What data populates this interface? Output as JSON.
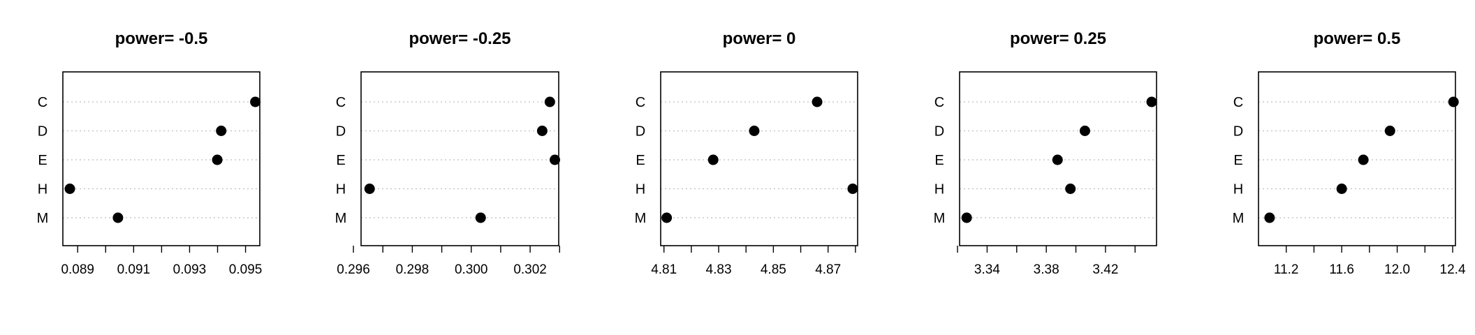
{
  "chart_data": [
    {
      "type": "scatter",
      "title": "power= -0.5",
      "categories": [
        "C",
        "D",
        "E",
        "H",
        "M"
      ],
      "values": [
        0.09535,
        0.09413,
        0.09399,
        0.08872,
        0.09044
      ],
      "xlim": [
        0.08847,
        0.09551
      ],
      "xticks": [
        0.089,
        0.09,
        0.091,
        0.092,
        0.093,
        0.094,
        0.095
      ],
      "xtick_labels": [
        "0.089",
        "",
        "0.091",
        "",
        "0.093",
        "",
        "0.095"
      ],
      "grid": "dotted horizontal",
      "colors": {
        "point": "#000000",
        "grid": "#bebebe"
      }
    },
    {
      "type": "scatter",
      "title": "power= -0.25",
      "categories": [
        "C",
        "D",
        "E",
        "H",
        "M"
      ],
      "values": [
        0.30267,
        0.30241,
        0.30284,
        0.29655,
        0.30032
      ],
      "xlim": [
        0.29626,
        0.30297
      ],
      "xticks": [
        0.296,
        0.297,
        0.298,
        0.299,
        0.3,
        0.301,
        0.302,
        0.303
      ],
      "xtick_labels": [
        "0.296",
        "",
        "0.298",
        "",
        "0.300",
        "",
        "0.302",
        ""
      ],
      "grid": "dotted horizontal",
      "colors": {
        "point": "#000000",
        "grid": "#bebebe"
      }
    },
    {
      "type": "scatter",
      "title": "power= 0",
      "categories": [
        "C",
        "D",
        "E",
        "H",
        "M"
      ],
      "values": [
        4.866,
        4.843,
        4.828,
        4.879,
        4.811
      ],
      "xlim": [
        4.8088,
        4.8808
      ],
      "xticks": [
        4.81,
        4.82,
        4.83,
        4.84,
        4.85,
        4.86,
        4.87,
        4.88
      ],
      "xtick_labels": [
        "4.81",
        "",
        "4.83",
        "",
        "4.85",
        "",
        "4.87",
        ""
      ],
      "grid": "dotted horizontal",
      "colors": {
        "point": "#000000",
        "grid": "#bebebe"
      }
    },
    {
      "type": "scatter",
      "title": "power= 0.25",
      "categories": [
        "C",
        "D",
        "E",
        "H",
        "M"
      ],
      "values": [
        3.4512,
        3.4061,
        3.3876,
        3.3963,
        3.3262
      ],
      "xlim": [
        3.3214,
        3.4545
      ],
      "xticks": [
        3.32,
        3.34,
        3.36,
        3.38,
        3.4,
        3.42,
        3.44
      ],
      "xtick_labels": [
        "",
        "3.34",
        "",
        "3.38",
        "",
        "3.42",
        ""
      ],
      "grid": "dotted horizontal",
      "colors": {
        "point": "#000000",
        "grid": "#bebebe"
      }
    },
    {
      "type": "scatter",
      "title": "power= 0.5",
      "categories": [
        "C",
        "D",
        "E",
        "H",
        "M"
      ],
      "values": [
        12.406,
        11.948,
        11.756,
        11.6,
        11.08
      ],
      "xlim": [
        11.0,
        12.42
      ],
      "xticks": [
        11.2,
        11.4,
        11.6,
        11.8,
        12.0,
        12.2,
        12.4
      ],
      "xtick_labels": [
        "11.2",
        "",
        "11.6",
        "",
        "12.0",
        "",
        "12.4"
      ],
      "grid": "dotted horizontal",
      "colors": {
        "point": "#000000",
        "grid": "#bebebe"
      }
    }
  ]
}
